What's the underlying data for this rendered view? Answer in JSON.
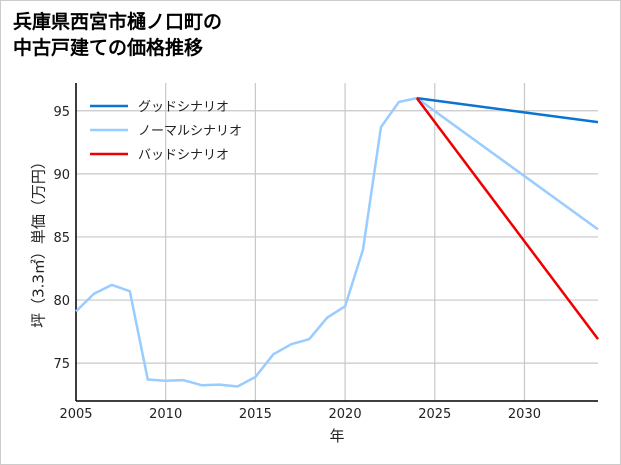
{
  "chart_data": {
    "type": "line",
    "title_lines": [
      "兵庫県西宮市樋ノ口町の",
      "中古戸建ての価格推移"
    ],
    "xlabel": "年",
    "ylabel": "坪（3.3㎡）単価（万円）",
    "xlim": [
      2005,
      2034.1
    ],
    "ylim": [
      72,
      97.2
    ],
    "xticks": [
      2005,
      2010,
      2015,
      2020,
      2025,
      2030
    ],
    "yticks": [
      75,
      80,
      85,
      90,
      95
    ],
    "grid": true,
    "legend_position": "top-left",
    "series": [
      {
        "name": "グッドシナリオ",
        "color": "#0a74d0",
        "x": [
          2024,
          2034.1
        ],
        "y": [
          96.0,
          94.1
        ]
      },
      {
        "name": "ノーマルシナリオ",
        "color": "#99ccff",
        "x": [
          2005,
          2006,
          2007,
          2008,
          2009,
          2010,
          2011,
          2012,
          2013,
          2014,
          2015,
          2016,
          2017,
          2018,
          2019,
          2020,
          2021,
          2022,
          2023,
          2024,
          2034.1
        ],
        "y": [
          79.1,
          80.5,
          81.2,
          80.7,
          73.7,
          73.6,
          73.65,
          73.25,
          73.3,
          73.15,
          73.9,
          75.7,
          76.5,
          76.9,
          78.6,
          79.5,
          84.0,
          93.7,
          95.7,
          96.0,
          85.6
        ]
      },
      {
        "name": "バッドシナリオ",
        "color": "#ee0000",
        "x": [
          2024,
          2034.1
        ],
        "y": [
          96.0,
          76.9
        ]
      }
    ]
  }
}
